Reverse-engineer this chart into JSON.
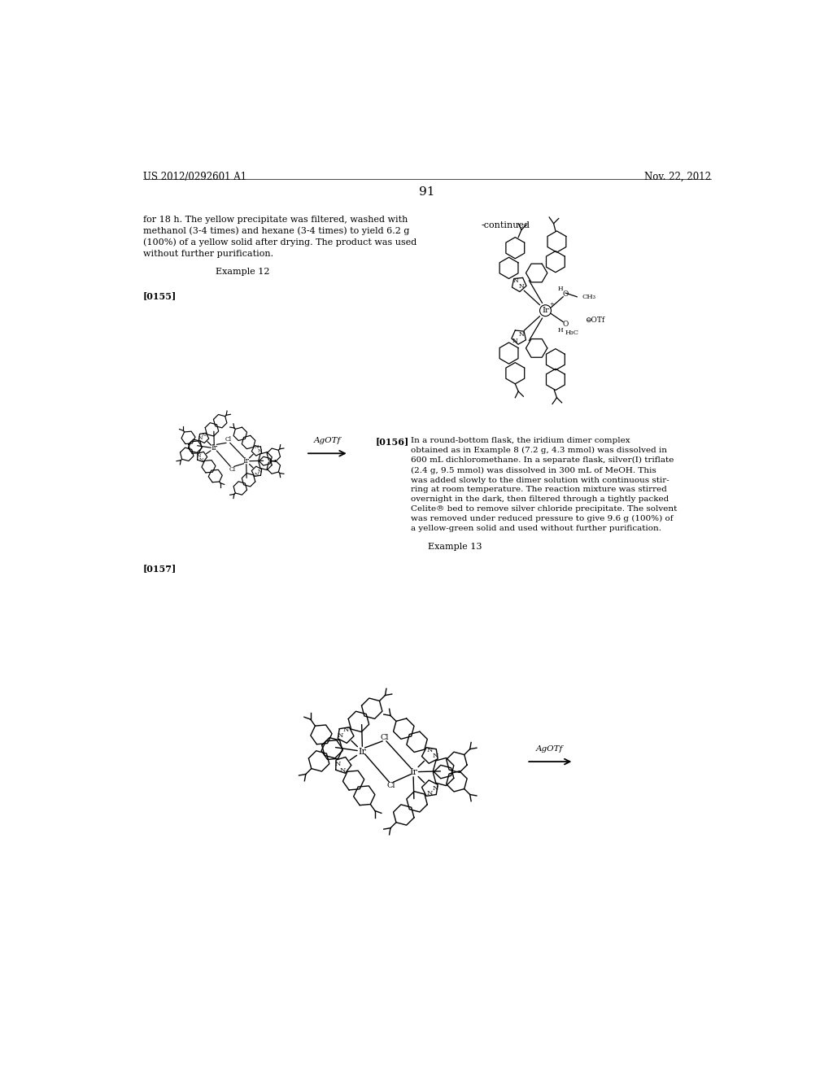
{
  "page_number": "91",
  "patent_number": "US 2012/0292601 A1",
  "patent_date": "Nov. 22, 2012",
  "background_color": "#ffffff",
  "text_color": "#000000",
  "top_left_text": "US 2012/0292601 A1",
  "top_right_text": "Nov. 22, 2012",
  "paragraph_text_1": "for 18 h. The yellow precipitate was filtered, washed with\nmethanol (3-4 times) and hexane (3-4 times) to yield 6.2 g\n(100%) of a yellow solid after drying. The product was used\nwithout further purification.",
  "example_12": "Example 12",
  "para_0155": "[0155]",
  "continued_label": "-continued",
  "arrow_label_1": "AgOTf",
  "para_0156_label": "[0156]",
  "para_0156_text_bold": "[0156]",
  "para_0156_body": "In a round-bottom flask, the iridium dimer complex\nobtained as in Example 8 (7.2 g, 4.3 mmol) was dissolved in\n600 mL dichloromethane. In a separate flask, silver(I) triflate\n(2.4 g, 9.5 mmol) was dissolved in 300 mL of MeOH. This\nwas added slowly to the dimer solution with continuous stir-\nring at room temperature. The reaction mixture was stirred\novernight in the dark, then filtered through a tightly packed\nCelite® bed to remove silver chloride precipitate. The solvent\nwas removed under reduced pressure to give 9.6 g (100%) of\na yellow-green solid and used without further purification.",
  "example_13": "Example 13",
  "para_0157": "[0157]",
  "arrow_label_2": "AgOTf",
  "font_size_header": 8.5,
  "font_size_body": 8.0,
  "font_size_page": 11,
  "font_size_example": 8.5,
  "font_size_label": 7.5
}
